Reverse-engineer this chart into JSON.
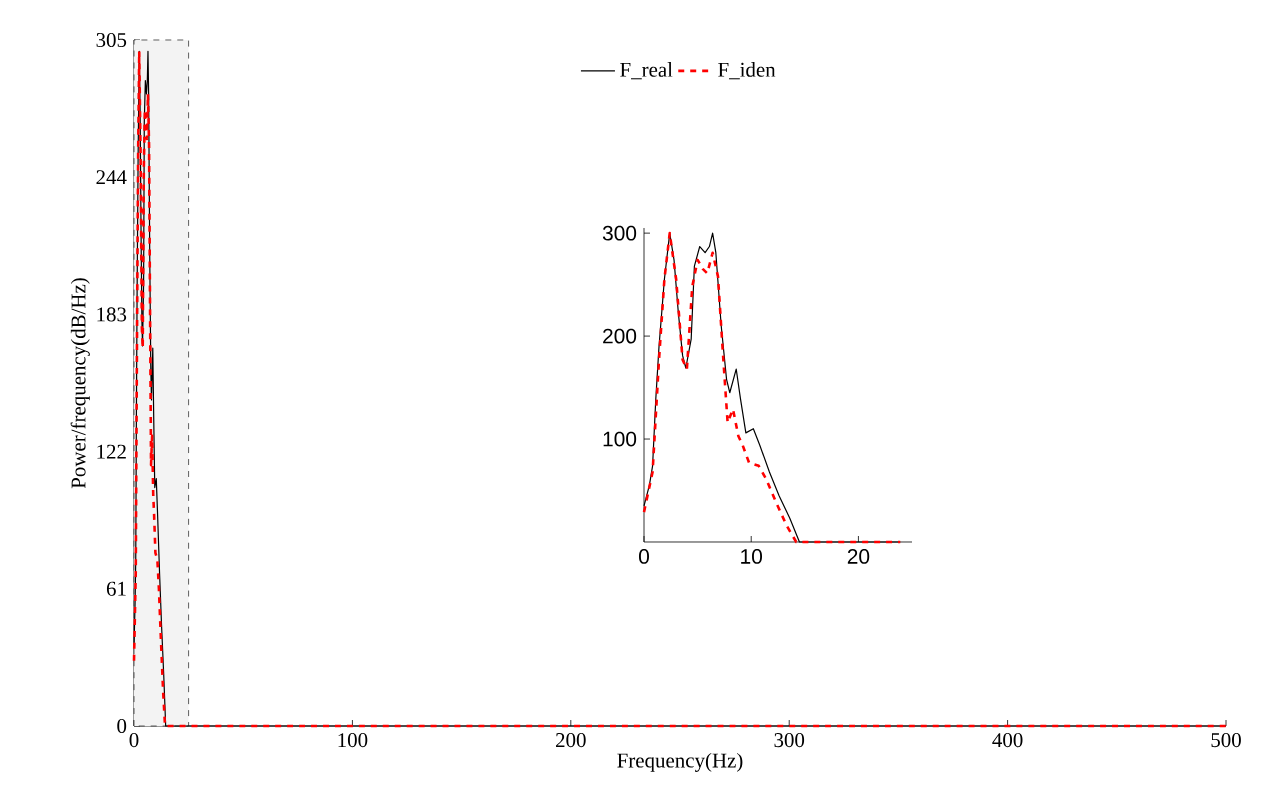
{
  "chart_data": [
    {
      "type": "line",
      "xlabel": "Frequency(Hz)",
      "ylabel": "Power/frequency(dB/Hz)",
      "xlim": [
        0,
        500
      ],
      "ylim": [
        0,
        305
      ],
      "xticks": [
        0,
        100,
        200,
        300,
        400,
        500
      ],
      "yticks": [
        0,
        61,
        122,
        183,
        244,
        305
      ],
      "legend": "top",
      "grid": false,
      "bands": [
        {
          "axis": "x",
          "from": 0,
          "to": 25,
          "color": "#333333"
        }
      ],
      "series": [
        {
          "name": "F_real",
          "color": "#000000",
          "line_style": "solid",
          "x": [
            0,
            0.5,
            0.8,
            1.1,
            1.4,
            1.9,
            2.4,
            2.8,
            3.2,
            3.6,
            3.9,
            4.4,
            4.7,
            5.2,
            5.7,
            6.1,
            6.4,
            6.7,
            7.2,
            7.7,
            8.0,
            8.6,
            9.0,
            9.5,
            10.2,
            10.8,
            11.7,
            12.6,
            13.6,
            14.5,
            30,
            500
          ],
          "values": [
            35,
            55,
            74,
            139,
            190,
            255,
            300,
            274,
            223,
            181,
            169,
            197,
            268,
            287,
            281,
            287,
            300,
            281,
            210,
            158,
            145,
            168,
            139,
            106,
            110,
            94,
            68,
            45,
            23,
            0,
            0,
            0
          ]
        },
        {
          "name": "F_iden",
          "color": "#ff0000",
          "line_style": "dashed",
          "x": [
            0,
            0.8,
            1.4,
            1.9,
            2.4,
            3.0,
            3.6,
            4.0,
            4.5,
            5.0,
            5.5,
            5.9,
            6.4,
            6.9,
            7.4,
            7.8,
            8.3,
            8.8,
            9.2,
            9.8,
            10.7,
            11.4,
            12.3,
            13.3,
            14.2,
            30,
            500
          ],
          "values": [
            29,
            68,
            177,
            255,
            300,
            255,
            177,
            168,
            248,
            274,
            265,
            261,
            281,
            258,
            177,
            116,
            129,
            103,
            94,
            77,
            74,
            61,
            39,
            16,
            0,
            0,
            0
          ]
        }
      ]
    },
    {
      "type": "line",
      "xlim": [
        0,
        25
      ],
      "ylim": [
        0,
        305
      ],
      "xticks": [
        0,
        10,
        20
      ],
      "yticks": [
        100,
        200,
        300
      ],
      "series": [
        {
          "color": "#000000",
          "line_style": "solid",
          "x": [
            0,
            0.5,
            0.8,
            1.1,
            1.4,
            1.9,
            2.4,
            2.8,
            3.2,
            3.6,
            3.9,
            4.4,
            4.7,
            5.2,
            5.7,
            6.1,
            6.4,
            6.7,
            7.2,
            7.7,
            8.0,
            8.6,
            9.0,
            9.5,
            10.2,
            10.8,
            11.7,
            12.6,
            13.6,
            14.5,
            23.9
          ],
          "values": [
            35,
            55,
            74,
            139,
            190,
            255,
            300,
            274,
            223,
            181,
            169,
            197,
            268,
            287,
            281,
            287,
            300,
            281,
            210,
            158,
            145,
            168,
            139,
            106,
            110,
            94,
            68,
            45,
            23,
            0,
            0
          ]
        },
        {
          "color": "#ff0000",
          "line_style": "dashed",
          "x": [
            0,
            0.8,
            1.4,
            1.9,
            2.4,
            3.0,
            3.6,
            4.0,
            4.5,
            5.0,
            5.5,
            5.9,
            6.4,
            6.9,
            7.4,
            7.8,
            8.3,
            8.8,
            9.2,
            9.8,
            10.7,
            11.4,
            12.3,
            13.3,
            14.2,
            23.9
          ],
          "values": [
            29,
            68,
            177,
            255,
            300,
            255,
            177,
            168,
            248,
            274,
            265,
            261,
            281,
            258,
            177,
            116,
            129,
            103,
            94,
            77,
            74,
            61,
            39,
            16,
            0,
            0
          ]
        }
      ]
    }
  ]
}
